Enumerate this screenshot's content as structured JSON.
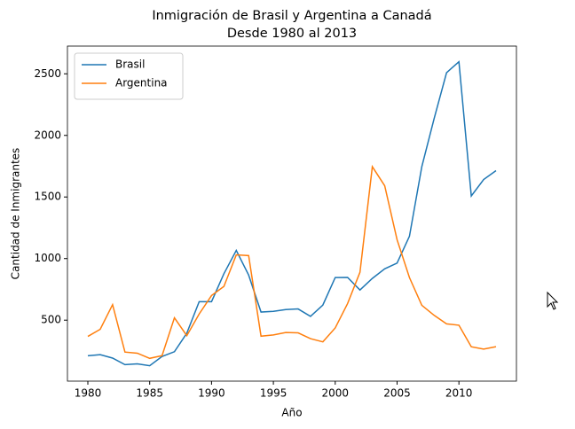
{
  "chart_data": {
    "type": "line",
    "title": "Inmigración de Brasil y Argentina a Canadá",
    "subtitle": "Desde 1980 al 2013",
    "x_label": "Año",
    "y_label": "Cantidad de Inmigrantes",
    "x": [
      1980,
      1981,
      1982,
      1983,
      1984,
      1985,
      1986,
      1987,
      1988,
      1989,
      1990,
      1991,
      1992,
      1993,
      1994,
      1995,
      1996,
      1997,
      1998,
      1999,
      2000,
      2001,
      2002,
      2003,
      2004,
      2005,
      2006,
      2007,
      2008,
      2009,
      2010,
      2011,
      2012,
      2013
    ],
    "series": [
      {
        "name": "Brasil",
        "color": "#1f77b4",
        "values": [
          211,
          220,
          192,
          139,
          145,
          130,
          205,
          244,
          394,
          650,
          650,
          877,
          1066,
          866,
          566,
          572,
          586,
          591,
          531,
          623,
          846,
          847,
          745,
          839,
          917,
          963,
          1181,
          1746,
          2138,
          2509,
          2598,
          1508,
          1642,
          1714
        ]
      },
      {
        "name": "Argentina",
        "color": "#ff7f0e",
        "values": [
          368,
          426,
          626,
          241,
          232,
          190,
          212,
          519,
          374,
          550,
          700,
          774,
          1030,
          1024,
          370,
          380,
          400,
          397,
          350,
          324,
          437,
          635,
          889,
          1746,
          1591,
          1153,
          846,
          621,
          539,
          470,
          459,
          284,
          265,
          285
        ]
      }
    ],
    "xlim": [
      1978.35,
      2014.65
    ],
    "ylim": [
      5,
      2725
    ],
    "xticks": [
      1980,
      1985,
      1990,
      1995,
      2000,
      2005,
      2010
    ],
    "yticks": [
      500,
      1000,
      1500,
      2000,
      2500
    ],
    "legend": "upper left"
  }
}
